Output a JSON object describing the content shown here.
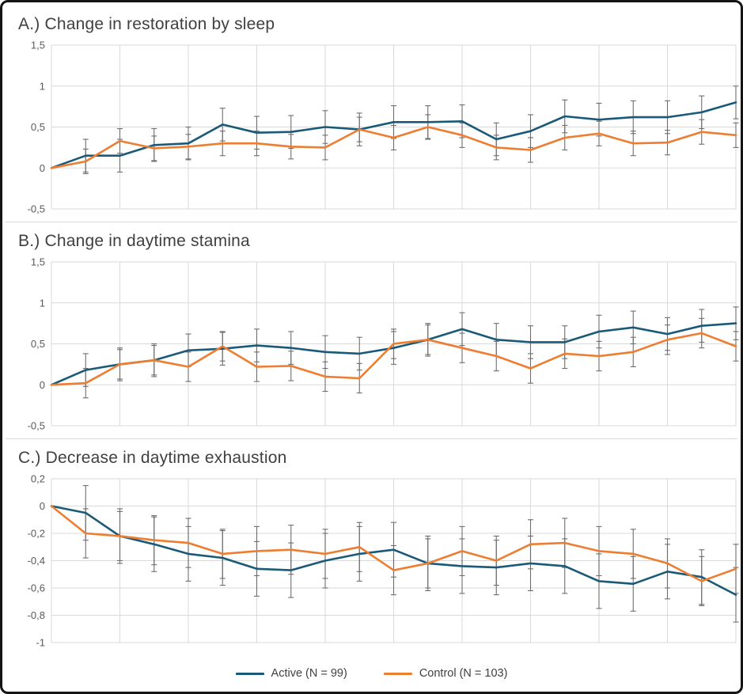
{
  "figure": {
    "background": "#ffffff",
    "border_color": "#141414",
    "gridline_color": "#d9d9d9",
    "tick_label_color": "#595959",
    "title_color": "#404040",
    "error_bar_color": "#6e6e6e"
  },
  "legend": {
    "items": [
      {
        "label": "Active (N = 99)",
        "color": "#1a5a78"
      },
      {
        "label": "Control (N = 103)",
        "color": "#ED7D31"
      }
    ]
  },
  "chart_data": [
    {
      "type": "line",
      "title": "A.) Change in restoration by sleep",
      "xlabel": "",
      "ylabel": "",
      "ylim": [
        -0.5,
        1.5
      ],
      "yticks": [
        1.5,
        1,
        0.5,
        0,
        -0.5
      ],
      "ytick_labels": [
        "1,5",
        "1",
        "0,5",
        "0",
        "-0,5"
      ],
      "grid": true,
      "x": [
        0,
        1,
        2,
        3,
        4,
        5,
        6,
        7,
        8,
        9,
        10,
        11,
        12,
        13,
        14,
        15,
        16,
        17,
        18,
        19,
        20
      ],
      "series": [
        {
          "name": "Active (N = 99)",
          "color": "#1a5a78",
          "err": 0.2,
          "values": [
            0,
            0.15,
            0.15,
            0.28,
            0.3,
            0.53,
            0.43,
            0.44,
            0.5,
            0.47,
            0.56,
            0.56,
            0.57,
            0.35,
            0.45,
            0.63,
            0.59,
            0.62,
            0.62,
            0.68,
            0.8
          ]
        },
        {
          "name": "Control (N = 103)",
          "color": "#ED7D31",
          "err": 0.15,
          "values": [
            0,
            0.08,
            0.33,
            0.24,
            0.26,
            0.3,
            0.3,
            0.26,
            0.25,
            0.47,
            0.37,
            0.5,
            0.4,
            0.25,
            0.22,
            0.37,
            0.42,
            0.3,
            0.31,
            0.44,
            0.4
          ]
        }
      ]
    },
    {
      "type": "line",
      "title": "B.) Change in daytime stamina",
      "xlabel": "",
      "ylabel": "",
      "ylim": [
        -0.5,
        1.5
      ],
      "yticks": [
        1.5,
        1,
        0.5,
        0,
        -0.5
      ],
      "ytick_labels": [
        "1,5",
        "1",
        "0,5",
        "0",
        "-0,5"
      ],
      "grid": true,
      "x": [
        0,
        1,
        2,
        3,
        4,
        5,
        6,
        7,
        8,
        9,
        10,
        11,
        12,
        13,
        14,
        15,
        16,
        17,
        18,
        19,
        20
      ],
      "series": [
        {
          "name": "Active (N = 99)",
          "color": "#1a5a78",
          "err": 0.2,
          "values": [
            0,
            0.18,
            0.25,
            0.3,
            0.42,
            0.44,
            0.48,
            0.45,
            0.4,
            0.38,
            0.45,
            0.55,
            0.68,
            0.55,
            0.52,
            0.52,
            0.65,
            0.7,
            0.62,
            0.72,
            0.75
          ]
        },
        {
          "name": "Control (N = 103)",
          "color": "#ED7D31",
          "err": 0.18,
          "values": [
            0,
            0.02,
            0.25,
            0.3,
            0.22,
            0.47,
            0.22,
            0.23,
            0.1,
            0.08,
            0.5,
            0.55,
            0.45,
            0.35,
            0.2,
            0.38,
            0.35,
            0.4,
            0.55,
            0.63,
            0.47
          ]
        }
      ]
    },
    {
      "type": "line",
      "title": "C.) Decrease in daytime exhaustion",
      "xlabel": "",
      "ylabel": "",
      "ylim": [
        -1,
        0.2
      ],
      "yticks": [
        0.2,
        0,
        -0.2,
        -0.4,
        -0.6,
        -0.8,
        -1
      ],
      "ytick_labels": [
        "0,2",
        "0",
        "-0,2",
        "-0,4",
        "-0,6",
        "-0,8",
        "-1"
      ],
      "grid": true,
      "x": [
        0,
        1,
        2,
        3,
        4,
        5,
        6,
        7,
        8,
        9,
        10,
        11,
        12,
        13,
        14,
        15,
        16,
        17,
        18,
        19,
        20
      ],
      "series": [
        {
          "name": "Active (N = 99)",
          "color": "#1a5a78",
          "err": 0.2,
          "values": [
            0,
            -0.05,
            -0.22,
            -0.28,
            -0.35,
            -0.38,
            -0.46,
            -0.47,
            -0.4,
            -0.35,
            -0.32,
            -0.42,
            -0.44,
            -0.45,
            -0.42,
            -0.44,
            -0.55,
            -0.57,
            -0.48,
            -0.52,
            -0.65
          ]
        },
        {
          "name": "Control (N = 103)",
          "color": "#ED7D31",
          "err": 0.18,
          "values": [
            0,
            -0.2,
            -0.22,
            -0.25,
            -0.27,
            -0.35,
            -0.33,
            -0.32,
            -0.35,
            -0.3,
            -0.47,
            -0.42,
            -0.33,
            -0.4,
            -0.28,
            -0.27,
            -0.33,
            -0.35,
            -0.42,
            -0.55,
            -0.46
          ]
        }
      ]
    }
  ]
}
